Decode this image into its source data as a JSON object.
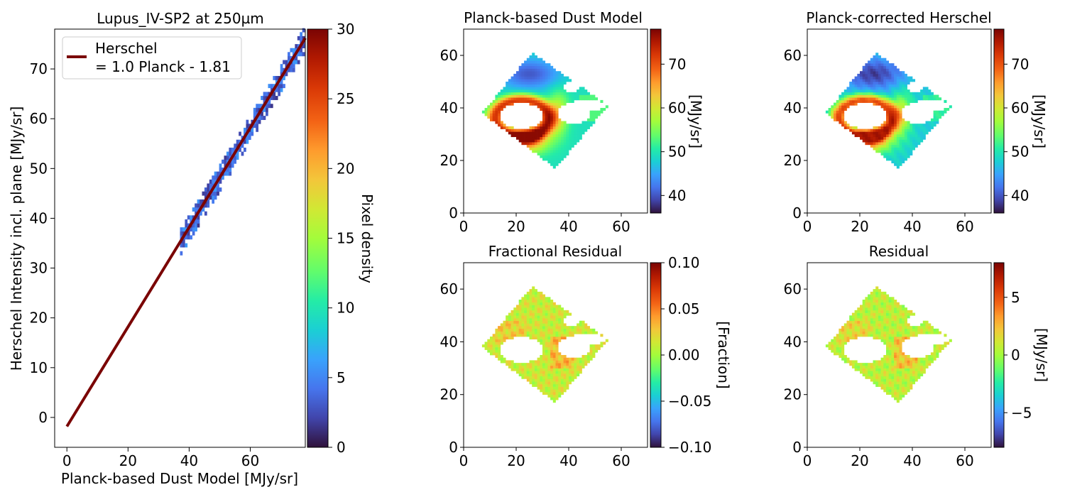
{
  "chart_data": [
    {
      "type": "scatter",
      "title": "Lupus_IV-SP2 at 250µm",
      "xlabel": "Planck-based Dust Model [MJy/sr]",
      "ylabel": "Herschel Intensity incl. plane [MJy/sr]",
      "xlim": [
        -4,
        78
      ],
      "ylim": [
        -6,
        78
      ],
      "xticks": [
        "0",
        "20",
        "40",
        "60"
      ],
      "yticks": [
        "0",
        "10",
        "20",
        "30",
        "40",
        "50",
        "60",
        "70"
      ],
      "legend": {
        "placement": "top-left",
        "line1": "Herschel",
        "line2": "= 1.0 Planck - 1.81"
      },
      "fit_line": {
        "slope": 1.0,
        "intercept": -1.81,
        "x": [
          0,
          78
        ],
        "color": "#7a0403"
      },
      "density_band": {
        "x_range": [
          37,
          77
        ],
        "y_offset_range": [
          -2.6,
          2.6
        ]
      },
      "colorbar": {
        "label": "Pixel density",
        "range": [
          0,
          30
        ],
        "ticks": [
          "0",
          "5",
          "10",
          "15",
          "20",
          "25",
          "30"
        ]
      }
    },
    {
      "type": "heatmap",
      "title": "Planck-based Dust Model",
      "xlim": [
        0,
        70
      ],
      "ylim": [
        0,
        70
      ],
      "xticks": [
        "0",
        "20",
        "40",
        "60"
      ],
      "yticks": [
        "0",
        "20",
        "40",
        "60"
      ],
      "colorbar": {
        "label": "[MJy/sr]",
        "range": [
          36,
          78
        ],
        "ticks": [
          "40",
          "50",
          "60",
          "70"
        ]
      }
    },
    {
      "type": "heatmap",
      "title": "Planck-corrected Herschel",
      "xlim": [
        0,
        70
      ],
      "ylim": [
        0,
        70
      ],
      "xticks": [
        "0",
        "20",
        "40",
        "60"
      ],
      "yticks": [
        "0",
        "20",
        "40",
        "60"
      ],
      "colorbar": {
        "label": "[MJy/sr]",
        "range": [
          36,
          78
        ],
        "ticks": [
          "40",
          "50",
          "60",
          "70"
        ]
      }
    },
    {
      "type": "heatmap",
      "title": "Fractional Residual",
      "xlim": [
        0,
        70
      ],
      "ylim": [
        0,
        70
      ],
      "xticks": [
        "0",
        "20",
        "40",
        "60"
      ],
      "yticks": [
        "0",
        "20",
        "40",
        "60"
      ],
      "colorbar": {
        "label": "[Fraction]",
        "range": [
          -0.1,
          0.1
        ],
        "ticks": [
          "−0.10",
          "−0.05",
          "0.00",
          "0.05",
          "0.10"
        ]
      }
    },
    {
      "type": "heatmap",
      "title": "Residual",
      "xlim": [
        0,
        70
      ],
      "ylim": [
        0,
        70
      ],
      "xticks": [
        "0",
        "20",
        "40",
        "60"
      ],
      "yticks": [
        "0",
        "20",
        "40",
        "60"
      ],
      "colorbar": {
        "label": "[MJy/sr]",
        "range": [
          -8,
          8
        ],
        "ticks": [
          "−5",
          "0",
          "5"
        ]
      }
    }
  ],
  "map_footprint": {
    "vertices": [
      [
        26,
        61
      ],
      [
        55,
        41
      ],
      [
        35,
        17
      ],
      [
        7,
        38
      ]
    ],
    "holes": [
      {
        "cx": 22,
        "cy": 37,
        "rx": 8,
        "ry": 5
      },
      {
        "cx": 42,
        "cy": 38,
        "rx": 6,
        "ry": 4
      },
      {
        "cx": 47,
        "cy": 41,
        "rx": 7,
        "ry": 2
      },
      {
        "cx": 41,
        "cy": 48,
        "rx": 3,
        "ry": 2
      }
    ]
  }
}
